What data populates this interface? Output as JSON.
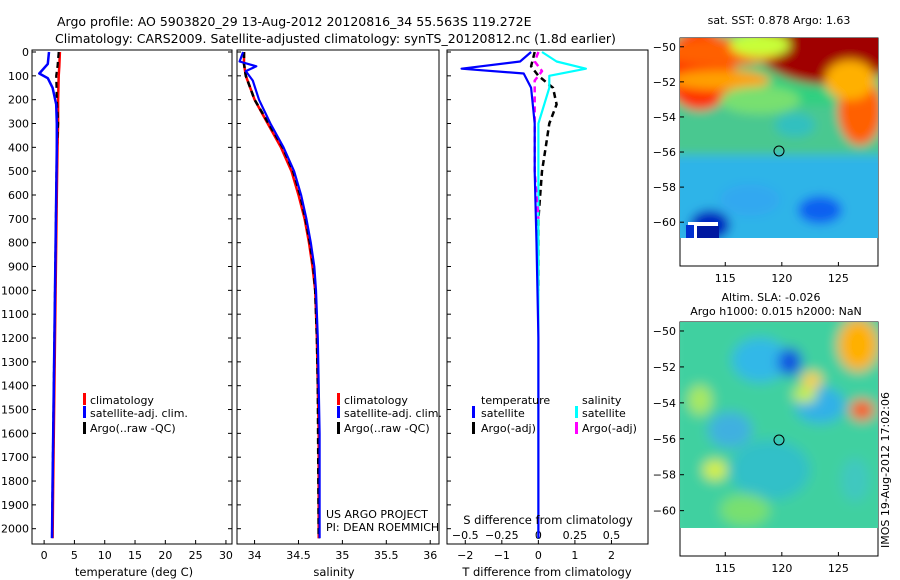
{
  "title": {
    "line1": "Argo profile: AO 5903820_29 13-Aug-2012 20120816_34 55.563S 119.272E",
    "line2": "Climatology: CARS2009. Satellite-adjusted climatology: synTS_20120812.nc (1.8d earlier)"
  },
  "side_text": "IMOS 19-Aug-2012 17:02:06",
  "colors": {
    "climatology": "#ff0000",
    "satellite": "#0000ff",
    "argo": "#000000",
    "salinity_satellite": "#00ffff",
    "salinity_argo": "#ff00ff"
  },
  "chart_data": [
    {
      "type": "line",
      "id": "temperature",
      "xlabel": "temperature (deg C)",
      "ylabel": "",
      "xlim": [
        -2,
        31
      ],
      "ylim": [
        2060,
        0
      ],
      "xticks": [
        0,
        5,
        10,
        15,
        20,
        25,
        30
      ],
      "yticks": [
        0,
        100,
        200,
        300,
        400,
        500,
        600,
        700,
        800,
        900,
        1000,
        1100,
        1200,
        1300,
        1400,
        1500,
        1600,
        1700,
        1800,
        1900,
        2000
      ],
      "legend": [
        "climatology",
        "satellite-adj. clim.",
        "Argo(..raw -QC)"
      ],
      "series": [
        {
          "name": "climatology",
          "x": [
            2.6,
            2.5,
            2.4,
            2.3,
            2.3,
            2.2,
            2.1,
            2.0,
            1.9,
            1.8,
            1.7,
            1.6,
            1.5,
            1.4
          ],
          "y": [
            0,
            60,
            100,
            200,
            300,
            400,
            600,
            800,
            1000,
            1200,
            1400,
            1600,
            1800,
            2040
          ]
        },
        {
          "name": "satellite-adj. clim.",
          "x": [
            0.8,
            0.6,
            -0.8,
            0.6,
            1.4,
            2.0,
            2.1,
            2.1,
            2.0,
            1.9,
            1.8,
            1.7,
            1.6,
            1.5,
            1.4,
            1.3
          ],
          "y": [
            0,
            50,
            90,
            110,
            150,
            220,
            300,
            400,
            600,
            800,
            1000,
            1200,
            1400,
            1600,
            1800,
            2040
          ]
        },
        {
          "name": "Argo(..raw -QC)",
          "x": [
            2.4,
            2.2,
            2.0,
            2.1,
            2.3,
            2.1,
            2.0,
            1.9,
            1.8,
            1.7,
            1.6,
            1.5,
            1.4,
            1.3
          ],
          "y": [
            0,
            60,
            100,
            200,
            300,
            400,
            600,
            800,
            1000,
            1200,
            1400,
            1600,
            1800,
            2040
          ]
        }
      ]
    },
    {
      "type": "line",
      "id": "salinity",
      "xlabel": "salinity",
      "xlim": [
        33.8,
        36.1
      ],
      "ylim": [
        2060,
        0
      ],
      "xticks": [
        34,
        34.5,
        35,
        35.5,
        36
      ],
      "xticklabels": [
        "34",
        "34.5",
        "35",
        "35.5",
        "36"
      ],
      "legend": [
        "climatology",
        "satellite-adj. clim.",
        "Argo(..raw -QC)"
      ],
      "annotation": [
        "US ARGO PROJECT",
        "PI: DEAN ROEMMICH"
      ],
      "series": [
        {
          "name": "climatology",
          "x": [
            33.88,
            33.88,
            33.9,
            34.0,
            34.15,
            34.3,
            34.42,
            34.5,
            34.57,
            34.62,
            34.66,
            34.69,
            34.71,
            34.72,
            34.73,
            34.73
          ],
          "y": [
            0,
            50,
            100,
            200,
            300,
            400,
            500,
            600,
            700,
            800,
            900,
            1000,
            1200,
            1400,
            1600,
            2040
          ]
        },
        {
          "name": "satellite-adj. clim.",
          "x": [
            33.87,
            33.83,
            34.02,
            33.9,
            33.98,
            34.05,
            34.18,
            34.33,
            34.45,
            34.53,
            34.59,
            34.64,
            34.68,
            34.7,
            34.72,
            34.73,
            34.74,
            34.74
          ],
          "y": [
            0,
            40,
            60,
            80,
            120,
            200,
            300,
            400,
            500,
            600,
            700,
            800,
            900,
            1000,
            1200,
            1400,
            1600,
            2040
          ]
        },
        {
          "name": "Argo(..raw -QC)",
          "x": [
            33.88,
            33.88,
            33.9,
            34.0,
            34.16,
            34.32,
            34.44,
            34.52,
            34.58,
            34.63,
            34.67,
            34.69,
            34.71,
            34.72,
            34.73
          ],
          "y": [
            0,
            50,
            100,
            200,
            300,
            400,
            500,
            600,
            700,
            800,
            900,
            1000,
            1200,
            1400,
            2040
          ]
        }
      ]
    },
    {
      "type": "line",
      "id": "difference",
      "xlabel": "T difference from climatology",
      "top_axis_label": "S difference from climatology",
      "xlim": [
        -2.5,
        3
      ],
      "ylim": [
        2060,
        0
      ],
      "xticks": [
        -2,
        -1,
        0,
        1,
        2
      ],
      "top_ticks": [
        -0.5,
        -0.25,
        0,
        0.25,
        0.5
      ],
      "legend_headers": [
        "temperature",
        "salinity"
      ],
      "legend": [
        "satellite",
        "Argo(-adj)",
        "satellite",
        "Argo(-adj)"
      ],
      "series": [
        {
          "name": "satellite",
          "group": "temperature",
          "x": [
            -0.2,
            -0.5,
            -2.1,
            -0.4,
            -0.2,
            -0.1,
            -0.1,
            -0.05,
            0.0,
            0.0
          ],
          "y": [
            0,
            40,
            70,
            90,
            150,
            300,
            500,
            800,
            1200,
            2040
          ]
        },
        {
          "name": "Argo(-adj)",
          "group": "temperature",
          "x": [
            -0.1,
            -0.2,
            0.0,
            0.4,
            0.5,
            0.3,
            0.2,
            0.1,
            0.0,
            0.0
          ],
          "y": [
            0,
            60,
            100,
            150,
            220,
            300,
            400,
            500,
            700,
            1000
          ]
        },
        {
          "name": "satellite",
          "group": "salinity",
          "x": [
            0.1,
            0.5,
            1.3,
            0.3,
            0.3,
            0.0,
            0.0,
            0.0,
            0.0
          ],
          "y": [
            0,
            40,
            70,
            100,
            150,
            300,
            600,
            1000,
            2040
          ]
        },
        {
          "name": "Argo(-adj)",
          "group": "salinity",
          "x": [
            0.0,
            -0.1,
            0.1,
            -0.1,
            -0.1,
            -0.1,
            -0.1,
            0.0
          ],
          "y": [
            0,
            40,
            80,
            120,
            200,
            300,
            500,
            700
          ]
        }
      ]
    },
    {
      "type": "heatmap",
      "id": "sst_map",
      "title": "sat. SST: 0.878 Argo: 1.63",
      "xlim": [
        111,
        128.5
      ],
      "ylim": [
        -61.3,
        -49.5
      ],
      "xticks": [
        115,
        120,
        125
      ],
      "yticks": [
        -50,
        -52,
        -54,
        -56,
        -58,
        -60
      ],
      "marker": [
        119.272,
        -55.563
      ]
    },
    {
      "type": "heatmap",
      "id": "sla_map",
      "title": "Altim. SLA: -0.026",
      "subtitle": "Argo h1000: 0.015 h2000: NaN",
      "xlim": [
        111,
        128.5
      ],
      "ylim": [
        -61.3,
        -49.5
      ],
      "xticks": [
        115,
        120,
        125
      ],
      "yticks": [
        -50,
        -52,
        -54,
        -56,
        -58,
        -60
      ],
      "marker": [
        119.272,
        -55.563
      ]
    }
  ]
}
